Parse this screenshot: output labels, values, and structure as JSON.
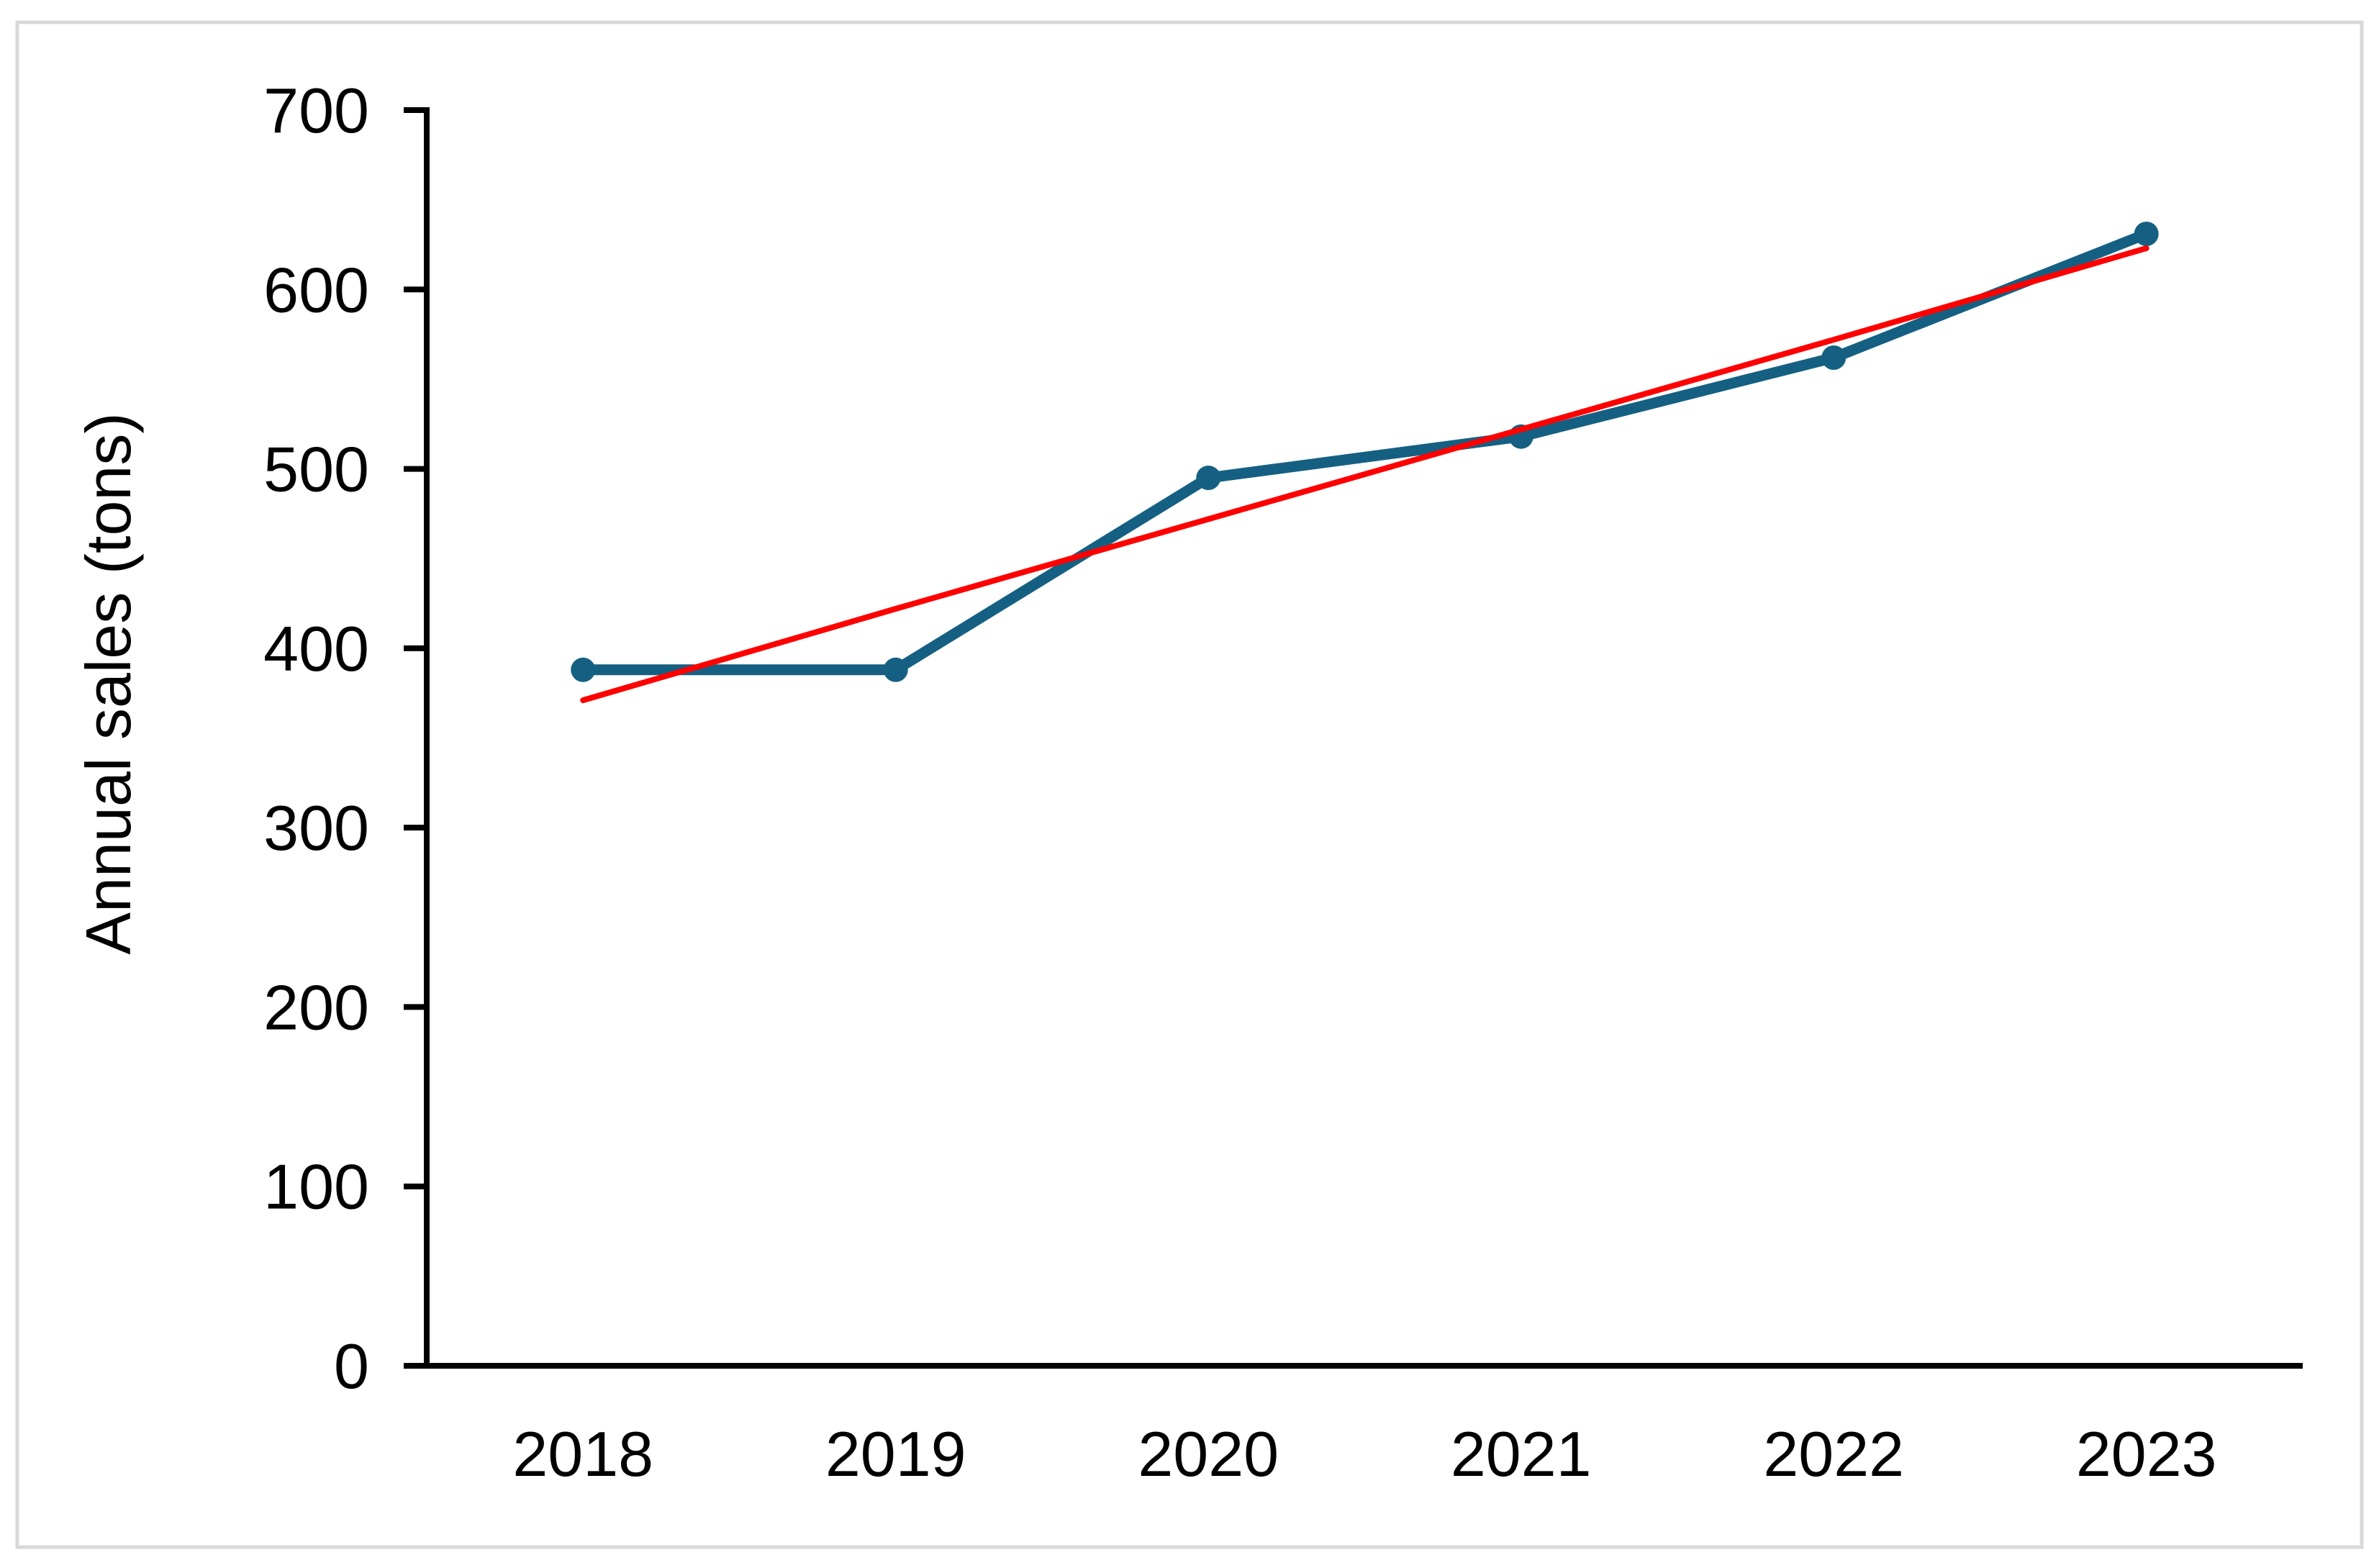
{
  "chart_data": {
    "type": "line",
    "title": "",
    "categories": [
      "2018",
      "2019",
      "2020",
      "2021",
      "2022",
      "2023"
    ],
    "series": [
      {
        "name": "annual-sales",
        "values": [
          388,
          388,
          495,
          518,
          562,
          631
        ],
        "color": "#156082",
        "markers": true,
        "line_width": 15,
        "marker_radius": 17
      },
      {
        "name": "linear-trendline",
        "values": [
          371,
          422,
          472,
          522,
          572,
          623
        ],
        "color": "#FF0000",
        "markers": false,
        "line_width": 8,
        "marker_radius": 0
      }
    ],
    "xlabel": "",
    "ylabel": "Annual sales (tons)",
    "ylim": [
      0,
      700
    ],
    "ytick_step": 100,
    "yticks": [
      "0",
      "100",
      "200",
      "300",
      "400",
      "500",
      "600",
      "700"
    ],
    "grid": false,
    "legend": "none"
  },
  "colors": {
    "axis": "#000000",
    "text": "#000000",
    "series_line": "#156082",
    "trendline": "#FF0000",
    "frame_border": "#D9D9D9",
    "background": "#FFFFFF"
  }
}
